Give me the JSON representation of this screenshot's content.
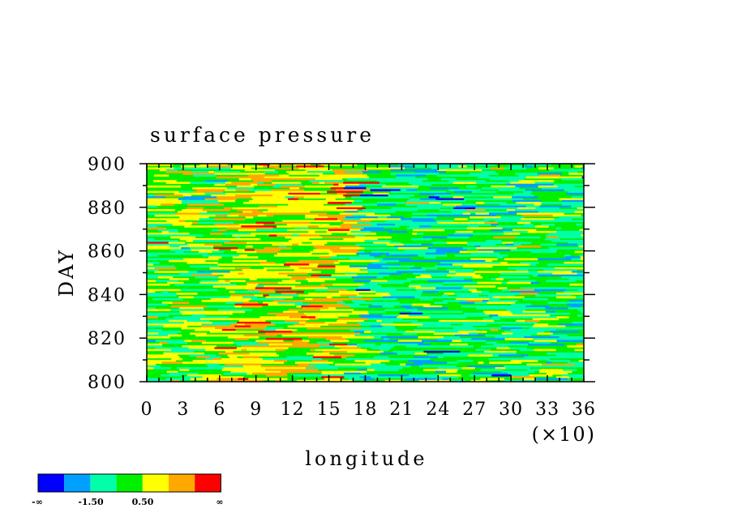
{
  "chart_data": {
    "type": "heatmap",
    "title": "surface pressure",
    "xlabel": "longitude",
    "ylabel": "DAY",
    "x_multiplier_label": "(×10)",
    "xlim": [
      0,
      36
    ],
    "ylim": [
      800,
      900
    ],
    "x_ticks": [
      "0",
      "3",
      "6",
      "9",
      "12",
      "15",
      "18",
      "21",
      "24",
      "27",
      "30",
      "33",
      "36"
    ],
    "y_ticks": [
      "800",
      "820",
      "840",
      "860",
      "880",
      "900"
    ],
    "colorbar": {
      "colors": [
        "#0000ff",
        "#00a0ff",
        "#00ffa8",
        "#00f000",
        "#ffff00",
        "#ffa800",
        "#ff0000"
      ],
      "labels": [
        "-∞",
        "-1.50",
        "0.50",
        "∞"
      ]
    }
  }
}
